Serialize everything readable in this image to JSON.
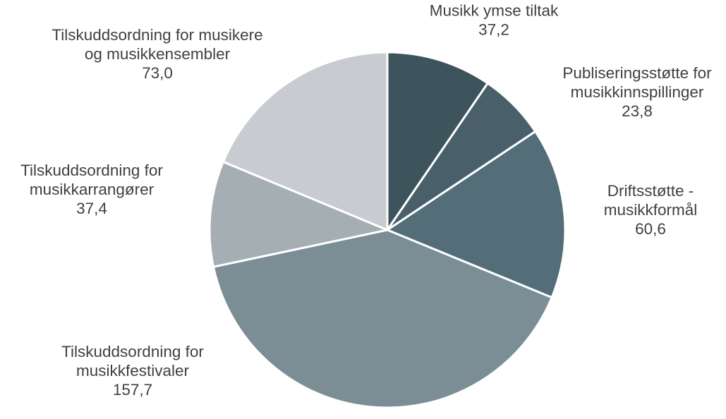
{
  "chart_data": {
    "type": "pie",
    "title": "",
    "slices": [
      {
        "label_lines": [
          "Musikk ymse tiltak"
        ],
        "value": 37.2,
        "value_label": "37,2",
        "color": "#3d545d"
      },
      {
        "label_lines": [
          "Publiseringsstøtte for",
          "musikkinnspillinger"
        ],
        "value": 23.8,
        "value_label": "23,8",
        "color": "#49606b"
      },
      {
        "label_lines": [
          "Driftsstøtte -",
          "musikkformål"
        ],
        "value": 60.6,
        "value_label": "60,6",
        "color": "#536e79"
      },
      {
        "label_lines": [
          "Tilskuddsordning for",
          "musikkfestivaler"
        ],
        "value": 157.7,
        "value_label": "157,7",
        "color": "#7b8e96"
      },
      {
        "label_lines": [
          "Tilskuddsordning for",
          "musikkarrangører"
        ],
        "value": 37.4,
        "value_label": "37,4",
        "color": "#a4aeb3"
      },
      {
        "label_lines": [
          "Tilskuddsordning for musikere",
          "og musikkensembler"
        ],
        "value": 73.0,
        "value_label": "73,0",
        "color": "#c8ccd0"
      }
    ],
    "start_angle_deg": 0,
    "direction": "clockwise",
    "legend": "none"
  }
}
